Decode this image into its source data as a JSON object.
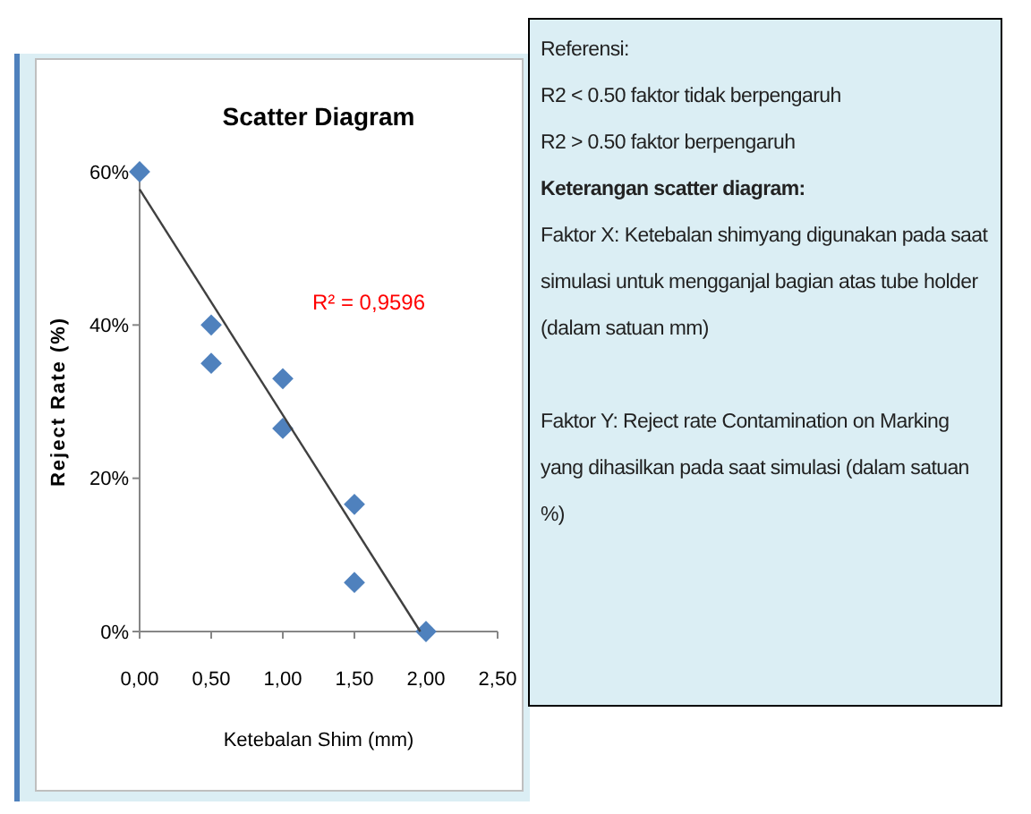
{
  "chart_data": {
    "type": "scatter",
    "title": "Scatter Diagram",
    "xlabel": "Ketebalan Shim (mm)",
    "ylabel": "Reject Rate (%)",
    "xlim": [
      0,
      2.5
    ],
    "xticks": [
      {
        "value": 0,
        "label": "0,00"
      },
      {
        "value": 0.5,
        "label": "0,50"
      },
      {
        "value": 1,
        "label": "1,00"
      },
      {
        "value": 1.5,
        "label": "1,50"
      },
      {
        "value": 2,
        "label": "2,00"
      },
      {
        "value": 2.5,
        "label": "2,50"
      }
    ],
    "ylim": [
      0,
      60
    ],
    "yticks": [
      {
        "value": 0,
        "label": "0%"
      },
      {
        "value": 20,
        "label": "20%"
      },
      {
        "value": 40,
        "label": "40%"
      },
      {
        "value": 60,
        "label": "60%"
      }
    ],
    "grid": false,
    "series": [
      {
        "color": "#4f81bd",
        "marker": "diamond",
        "x": [
          0,
          0.5,
          0.5,
          1,
          1,
          1.5,
          1.5,
          2
        ],
        "values": [
          60,
          40,
          35,
          33,
          26.5,
          16.6,
          6.4,
          0
        ]
      },
      {
        "type": "line",
        "color": "#404040",
        "marker": "none",
        "x": [
          0,
          1.96
        ],
        "values": [
          57.7,
          0
        ]
      }
    ],
    "annotations": [
      "R² = 0,9596",
      "Referensi:",
      "R2 < 0.50  faktor tidak berpengaruh",
      "R2 > 0.50  faktor berpengaruh",
      "Keterangan scatter diagram:",
      "Faktor X:  Ketebalan shimyang digunakan pada saat simulasi untuk mengganjal bagian atas tube holder (dalam satuan mm)",
      "Faktor Y:  Reject rate Contamination on Marking yang dihasilkan pada saat simulasi (dalam satuan %)"
    ]
  }
}
